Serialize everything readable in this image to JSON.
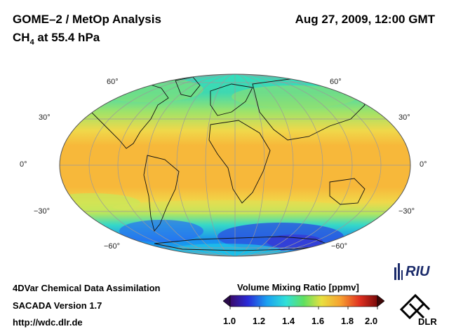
{
  "header": {
    "title": "GOME–2 / MetOp Analysis",
    "subtitle_species": "CH",
    "subtitle_subscript": "4",
    "subtitle_level": " at 55.4 hPa",
    "datetime": "Aug 27, 2009, 12:00 GMT"
  },
  "map": {
    "projection": "Mollweide",
    "lat_labels_left": [
      "60°",
      "30°",
      "0°",
      "−30°",
      "−60°"
    ],
    "lat_labels_right": [
      "60°",
      "30°",
      "0°",
      "−30°",
      "−60°"
    ]
  },
  "colorbar": {
    "title": "Volume Mixing Ratio [ppmv]",
    "ticks": [
      "1.0",
      "1.2",
      "1.4",
      "1.6",
      "1.8",
      "2.0"
    ],
    "min": 1.0,
    "max": 2.0
  },
  "footer": {
    "line1": "4DVar Chemical Data Assimilation",
    "line2": "SACADA Version 1.7",
    "line3": "http://wdc.dlr.de"
  },
  "logos": {
    "riu": "RIU",
    "dlr": "DLR"
  }
}
